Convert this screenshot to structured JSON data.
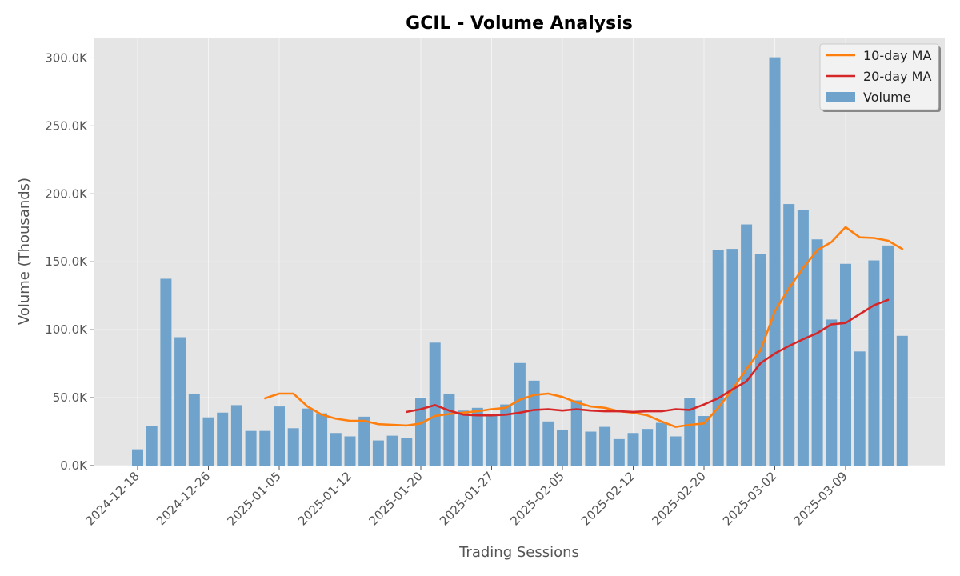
{
  "chart_data": {
    "type": "bar",
    "title": "GCIL - Volume Analysis",
    "xlabel": "Trading Sessions",
    "ylabel": "Volume (Thousands)",
    "ylim": [
      0,
      315000
    ],
    "yticks": [
      0,
      50000,
      100000,
      150000,
      200000,
      250000,
      300000
    ],
    "ytick_labels": [
      "0.0K",
      "50.0K",
      "100.0K",
      "150.0K",
      "200.0K",
      "250.0K",
      "300.0K"
    ],
    "xtick_labels": [
      "2024-12-18",
      "2024-12-26",
      "2025-01-05",
      "2025-01-12",
      "2025-01-20",
      "2025-01-27",
      "2025-02-05",
      "2025-02-12",
      "2025-02-20",
      "2025-03-02",
      "2025-03-09"
    ],
    "xtick_index": [
      0,
      5,
      10,
      15,
      20,
      25,
      30,
      35,
      40,
      45,
      50
    ],
    "grid": true,
    "legend_position": "top-right",
    "series": [
      {
        "name": "Volume",
        "type": "bar",
        "color": "#6fa3cc",
        "values": [
          12000,
          29000,
          137500,
          94500,
          53000,
          35500,
          39000,
          44500,
          25500,
          25500,
          43500,
          27500,
          42000,
          38500,
          24000,
          21500,
          36000,
          18500,
          22000,
          20500,
          49500,
          90500,
          53000,
          40500,
          42500,
          37000,
          45000,
          75500,
          62500,
          32500,
          26500,
          48000,
          25000,
          28500,
          19500,
          24000,
          27000,
          31500,
          21500,
          49500,
          36500,
          158500,
          159500,
          177500,
          156000,
          300500,
          192500,
          188000,
          166500,
          107500,
          148500,
          84000,
          151000,
          162000,
          95500
        ]
      },
      {
        "name": "10-day MA",
        "type": "line",
        "color": "#ff7f0e",
        "start_index": 9,
        "values": [
          49500,
          53000,
          53000,
          43500,
          37500,
          34500,
          33000,
          33000,
          30500,
          30000,
          29500,
          31000,
          36500,
          38000,
          39000,
          40000,
          41500,
          42500,
          48500,
          52000,
          53000,
          50500,
          46500,
          43500,
          42500,
          40000,
          39000,
          37000,
          32500,
          28500,
          30000,
          31000,
          42500,
          56000,
          71000,
          85000,
          113500,
          130500,
          145500,
          158500,
          164500,
          175500,
          168000,
          167500,
          165500,
          159500
        ]
      },
      {
        "name": "20-day MA",
        "type": "line",
        "color": "#d62728",
        "start_index": 19,
        "values": [
          39500,
          41500,
          44500,
          40500,
          37500,
          37000,
          37000,
          37500,
          39000,
          41000,
          41500,
          40500,
          41500,
          40500,
          40000,
          40000,
          39500,
          40000,
          40000,
          41500,
          41000,
          45000,
          49500,
          56000,
          62000,
          75500,
          82500,
          88000,
          93000,
          97500,
          104000,
          105000,
          111500,
          118000,
          122000
        ]
      }
    ]
  }
}
